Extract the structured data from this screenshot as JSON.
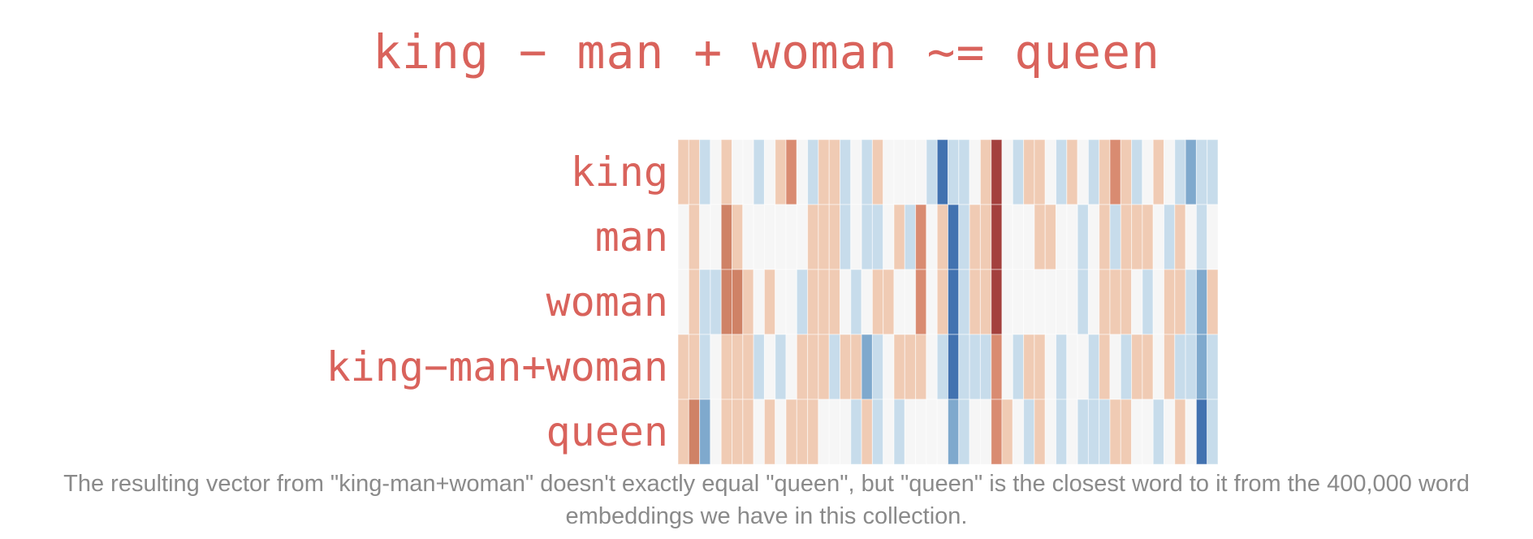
{
  "chart_data": {
    "type": "heatmap",
    "title": "king − man + woman ~= queen",
    "rows": [
      "king",
      "man",
      "woman",
      "king−man+woman",
      "queen"
    ],
    "num_columns": 50,
    "value_range": [
      -2,
      2
    ],
    "colormap": "RdBu (red = positive, blue = negative)",
    "values": [
      [
        1,
        1,
        -1,
        0,
        1,
        0,
        0,
        -1,
        0,
        1,
        2,
        0,
        -1,
        1,
        1,
        -1,
        0,
        -1,
        1,
        0,
        0,
        0,
        0,
        -1,
        -3,
        -1,
        -1,
        0,
        1,
        4,
        0,
        -1,
        1,
        1,
        0,
        -1,
        1,
        0,
        -1,
        1,
        2,
        1,
        -1,
        0,
        1,
        0,
        -1,
        -2,
        -1,
        -1
      ],
      [
        0,
        1,
        0,
        0,
        3,
        1,
        0,
        0,
        0,
        0,
        0,
        0,
        1,
        1,
        1,
        -1,
        0,
        -1,
        -1,
        0,
        1,
        -1,
        2,
        0,
        1,
        -3,
        -1,
        1,
        1,
        4,
        0,
        0,
        0,
        1,
        1,
        0,
        0,
        -1,
        0,
        1,
        -1,
        1,
        1,
        1,
        0,
        -1,
        1,
        0,
        -1,
        0
      ],
      [
        0,
        1,
        -1,
        -1,
        3,
        3,
        1,
        0,
        1,
        0,
        0,
        -1,
        1,
        1,
        1,
        0,
        -1,
        0,
        1,
        1,
        0,
        0,
        2,
        0,
        1,
        -3,
        -1,
        1,
        1,
        4,
        0,
        0,
        0,
        0,
        0,
        0,
        0,
        -1,
        0,
        1,
        1,
        1,
        0,
        -1,
        0,
        1,
        1,
        -1,
        -2,
        1
      ],
      [
        1,
        1,
        -1,
        0,
        1,
        1,
        1,
        -1,
        0,
        -1,
        0,
        1,
        1,
        1,
        -1,
        1,
        1,
        -2,
        -1,
        0,
        1,
        1,
        1,
        0,
        -1,
        -3,
        -1,
        -1,
        -1,
        2,
        0,
        -1,
        1,
        1,
        0,
        -1,
        0,
        0,
        -1,
        1,
        0,
        -1,
        1,
        1,
        0,
        1,
        -1,
        -1,
        -2,
        -1
      ],
      [
        1,
        3,
        -2,
        0,
        1,
        1,
        1,
        0,
        1,
        0,
        1,
        1,
        1,
        0,
        0,
        0,
        -1,
        1,
        -1,
        0,
        -1,
        0,
        0,
        0,
        0,
        -2,
        -1,
        0,
        0,
        2,
        1,
        0,
        -1,
        1,
        0,
        -1,
        0,
        -1,
        -1,
        -1,
        1,
        1,
        0,
        0,
        -1,
        0,
        1,
        0,
        -3,
        -1
      ]
    ]
  },
  "caption": "The resulting vector from \"king-man+woman\" doesn't exactly equal \"queen\", but \"queen\" is the closest word to it from the 400,000 word embeddings we have in this collection."
}
